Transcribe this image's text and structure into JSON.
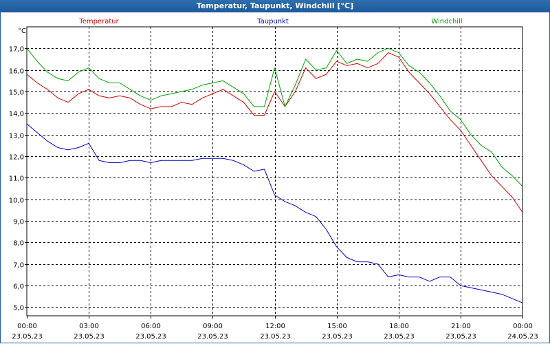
{
  "window": {
    "title": "Temperatur, Taupunkt, Windchill [°C]"
  },
  "chart_data": {
    "type": "line",
    "title": "Temperatur, Taupunkt, Windchill [°C]",
    "ylabel": "°C",
    "ylim": [
      4.6,
      18.0
    ],
    "xlim": [
      0,
      24
    ],
    "grid": true,
    "y_ticks": [
      "5,0",
      "6,0",
      "7,0",
      "8,0",
      "9,0",
      "10,0",
      "11,0",
      "12,0",
      "13,0",
      "14,0",
      "15,0",
      "16,0",
      "17,0"
    ],
    "x_ticks": [
      {
        "time": "00:00",
        "date": "23.05.23"
      },
      {
        "time": "03:00",
        "date": "23.05.23"
      },
      {
        "time": "06:00",
        "date": "23.05.23"
      },
      {
        "time": "09:00",
        "date": "23.05.23"
      },
      {
        "time": "12:00",
        "date": "23.05.23"
      },
      {
        "time": "15:00",
        "date": "23.05.23"
      },
      {
        "time": "18:00",
        "date": "23.05.23"
      },
      {
        "time": "21:00",
        "date": "23.05.23"
      },
      {
        "time": "00:00",
        "date": "24.05.23"
      }
    ],
    "x": [
      0,
      0.5,
      1,
      1.5,
      2,
      2.5,
      3,
      3.5,
      4,
      4.5,
      5,
      5.5,
      6,
      6.5,
      7,
      7.5,
      8,
      8.5,
      9,
      9.5,
      10,
      10.5,
      11,
      11.5,
      12,
      12.5,
      13,
      13.5,
      14,
      14.5,
      15,
      15.5,
      16,
      16.5,
      17,
      17.5,
      18,
      18.5,
      19,
      19.5,
      20,
      20.5,
      21,
      21.5,
      22,
      22.5,
      23,
      23.5,
      24
    ],
    "series": [
      {
        "name": "Temperatur",
        "color": "#d00000",
        "values": [
          15.8,
          15.4,
          15.1,
          14.7,
          14.5,
          14.9,
          15.1,
          14.8,
          14.7,
          14.8,
          14.7,
          14.4,
          14.2,
          14.3,
          14.3,
          14.5,
          14.4,
          14.7,
          14.9,
          15.1,
          14.8,
          14.5,
          13.9,
          13.9,
          15.0,
          14.3,
          15.0,
          16.1,
          15.6,
          15.8,
          16.4,
          16.2,
          16.3,
          16.1,
          16.3,
          16.8,
          16.6,
          15.9,
          15.4,
          14.9,
          14.3,
          13.7,
          13.2,
          12.5,
          11.8,
          11.1,
          10.6,
          10.1,
          9.4
        ]
      },
      {
        "name": "Taupunkt",
        "color": "#0000c0",
        "values": [
          13.5,
          13.1,
          12.7,
          12.4,
          12.3,
          12.4,
          12.6,
          11.8,
          11.7,
          11.7,
          11.8,
          11.8,
          11.7,
          11.8,
          11.8,
          11.8,
          11.8,
          11.9,
          11.9,
          11.9,
          11.8,
          11.6,
          11.3,
          11.4,
          10.2,
          9.9,
          9.7,
          9.4,
          9.2,
          8.6,
          7.8,
          7.3,
          7.1,
          7.1,
          7.0,
          6.4,
          6.5,
          6.4,
          6.4,
          6.2,
          6.4,
          6.4,
          6.0,
          5.9,
          5.8,
          5.7,
          5.6,
          5.4,
          5.2
        ]
      },
      {
        "name": "Windchill",
        "color": "#00a000",
        "values": [
          17.0,
          16.4,
          15.9,
          15.6,
          15.5,
          15.9,
          16.1,
          15.6,
          15.4,
          15.4,
          15.1,
          14.8,
          14.6,
          14.8,
          14.9,
          15.0,
          15.1,
          15.3,
          15.4,
          15.5,
          15.2,
          14.9,
          14.3,
          14.3,
          16.1,
          14.3,
          15.3,
          16.5,
          16.0,
          16.1,
          16.9,
          16.3,
          16.5,
          16.4,
          16.8,
          17.0,
          16.8,
          16.2,
          15.9,
          15.4,
          14.8,
          14.1,
          13.7,
          13.0,
          12.5,
          12.2,
          11.5,
          11.1,
          10.6
        ]
      }
    ]
  }
}
